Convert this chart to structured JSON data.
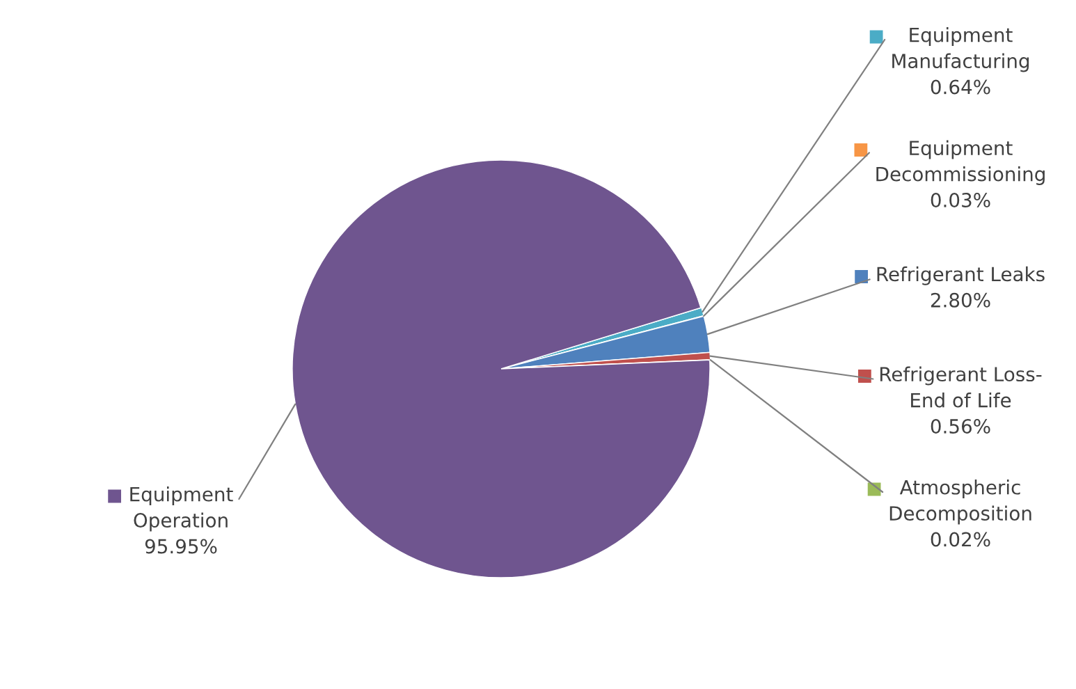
{
  "chart_data": {
    "type": "pie",
    "categories": [
      "Equipment\nManufacturing",
      "Equipment\nDecommissioning",
      "Refrigerant Leaks",
      "Refrigerant Loss-\nEnd of Life",
      "Atmospheric\nDecomposition",
      "Equipment\nOperation"
    ],
    "values": [
      0.64,
      0.03,
      2.8,
      0.56,
      0.02,
      95.95
    ],
    "colors": [
      "#4bacc6",
      "#f79646",
      "#4f81bd",
      "#c0504d",
      "#9bbb59",
      "#6f558f"
    ],
    "value_labels": [
      "0.64%",
      "0.03%",
      "2.80%",
      "0.56%",
      "0.02%",
      "95.95%"
    ],
    "legend": "right"
  }
}
